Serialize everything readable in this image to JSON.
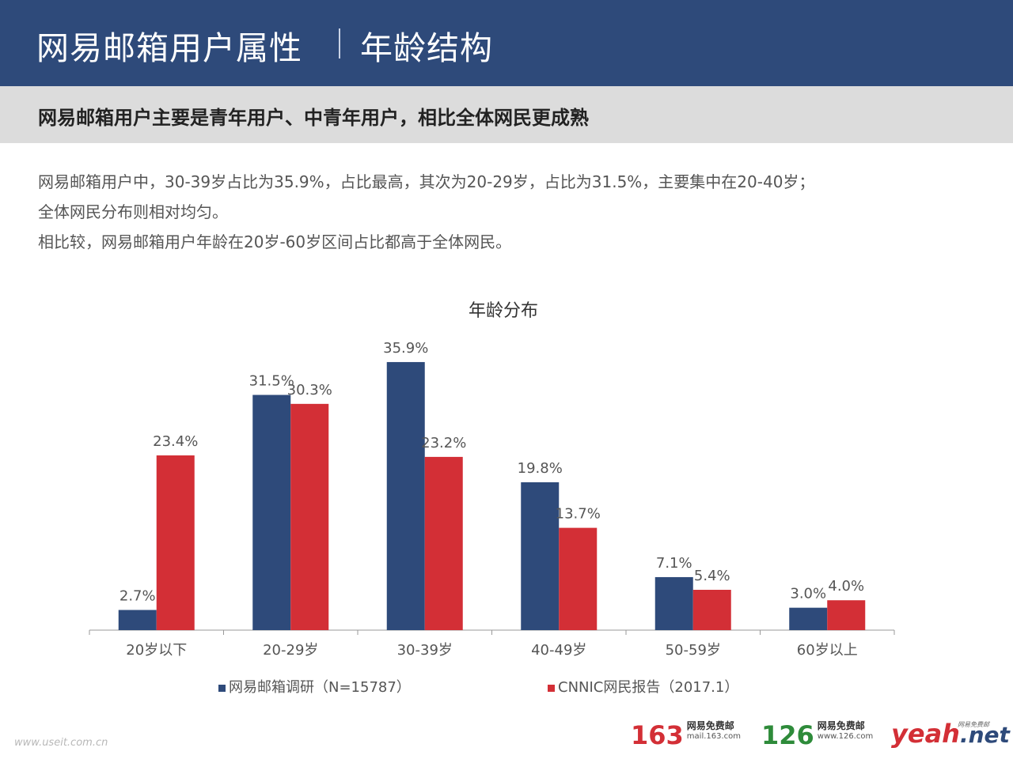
{
  "header": {
    "title": "网易邮箱用户属性",
    "subtitle": "年龄结构"
  },
  "banner": {
    "text": "网易邮箱用户主要是青年用户、中青年用户，相比全体网民更成熟"
  },
  "paragraphs": [
    "网易邮箱用户中，30-39岁占比为35.9%，占比最高，其次为20-29岁，占比为31.5%，主要集中在20-40岁；",
    "全体网民分布则相对均匀。",
    "相比较，网易邮箱用户年龄在20岁-60岁区间占比都高于全体网民。"
  ],
  "chart_data": {
    "type": "bar",
    "title": "年龄分布",
    "categories": [
      "20岁以下",
      "20-29岁",
      "30-39岁",
      "40-49岁",
      "50-59岁",
      "60岁以上"
    ],
    "series": [
      {
        "name": "网易邮箱调研（N=15787）",
        "values": [
          2.7,
          31.5,
          35.9,
          19.8,
          7.1,
          3.0
        ],
        "labels": [
          "2.7%",
          "31.5%",
          "35.9%",
          "19.8%",
          "7.1%",
          "3.0%"
        ],
        "color": "#2e4a7a"
      },
      {
        "name": "CNNIC网民报告（2017.1）",
        "values": [
          23.4,
          30.3,
          23.2,
          13.7,
          5.4,
          4.0
        ],
        "labels": [
          "23.4%",
          "30.3%",
          "23.2%",
          "13.7%",
          "5.4%",
          "4.0%"
        ],
        "color": "#d32f36"
      }
    ],
    "ylim": [
      0,
      36
    ],
    "grid": false,
    "legend": "bottom"
  },
  "logos": {
    "l163_big": "163",
    "l163_line1": "网易免费邮",
    "l163_line2": "mail.163.com",
    "l126_big": "126",
    "l126_line1": "网易免费邮",
    "l126_line2": "www.126.com",
    "yeah_main": "yeah",
    "yeah_dot": ".net",
    "yeah_tag": "网易免费邮"
  },
  "watermark": "www.useit.com.cn",
  "colors": {
    "header_bg": "#2e4a7a",
    "banner_bg": "#dcdcdc",
    "series1": "#2e4a7a",
    "series2": "#d32f36"
  }
}
